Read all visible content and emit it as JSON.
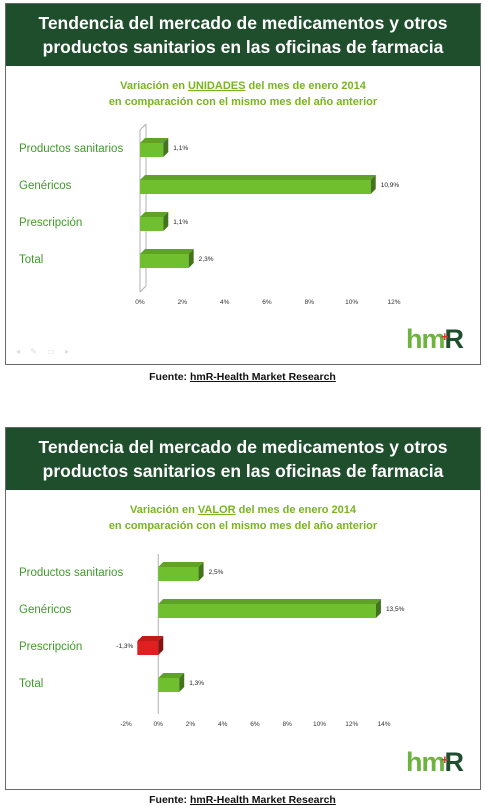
{
  "panels": [
    {
      "banner_line1": "Tendencia del mercado de medicamentos y otros",
      "banner_line2": "productos sanitarios en las oficinas de farmacia",
      "subtitle_pre": "Variación en ",
      "subtitle_key": "UNIDADES",
      "subtitle_post": " del mes de enero 2014",
      "subtitle_line2": "en comparación con el mismo mes del año anterior",
      "logo_main": "hm",
      "logo_r": "R",
      "logo_plus": "+",
      "source_label": "Fuente: ",
      "source_name": "hmR-Health Market Research"
    },
    {
      "banner_line1": "Tendencia del mercado de medicamentos y otros",
      "banner_line2": "productos sanitarios en las oficinas de farmacia",
      "subtitle_pre": "Variación en ",
      "subtitle_key": "VALOR",
      "subtitle_post": " del mes de enero 2014",
      "subtitle_line2": "en comparación con el mismo mes del año anterior",
      "logo_main": "hm",
      "logo_r": "R",
      "logo_plus": "+",
      "source_label": "Fuente: ",
      "source_name": "hmR-Health Market Research"
    }
  ],
  "colors": {
    "banner_bg": "#1f4e2c",
    "accent_green": "#7ab51d",
    "bar_positive": "#6fbf2e",
    "bar_negative": "#e02020"
  },
  "chart_data": [
    {
      "type": "bar",
      "orientation": "horizontal",
      "title": "Variación en UNIDADES del mes de enero 2014 en comparación con el mismo mes del año anterior",
      "categories": [
        "Productos sanitarios",
        "Genéricos",
        "Prescripción",
        "Total"
      ],
      "values": [
        1.1,
        10.9,
        1.1,
        2.3
      ],
      "value_labels": [
        "1,1%",
        "10,9%",
        "1,1%",
        "2,3%"
      ],
      "xlim": [
        0,
        12
      ],
      "xticks": [
        "0%",
        "2%",
        "4%",
        "6%",
        "8%",
        "10%",
        "12%"
      ],
      "grid": false
    },
    {
      "type": "bar",
      "orientation": "horizontal",
      "title": "Variación en VALOR del mes de enero 2014 en comparación con el mismo mes del año anterior",
      "categories": [
        "Productos sanitarios",
        "Genéricos",
        "Prescripción",
        "Total"
      ],
      "values": [
        2.5,
        13.5,
        -1.3,
        1.3
      ],
      "value_labels": [
        "2,5%",
        "13,5%",
        "-1,3%",
        "1,3%"
      ],
      "xlim": [
        -2,
        14
      ],
      "xticks": [
        "-2%",
        "0%",
        "2%",
        "4%",
        "6%",
        "8%",
        "10%",
        "12%",
        "14%"
      ],
      "grid": false
    }
  ]
}
